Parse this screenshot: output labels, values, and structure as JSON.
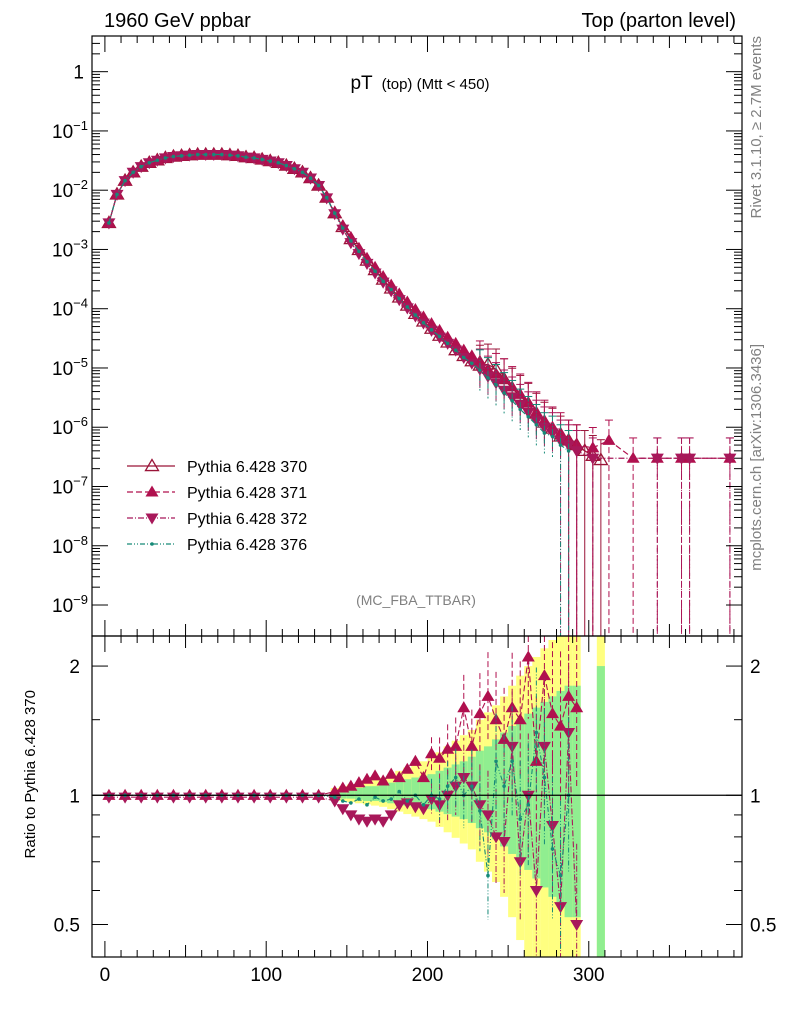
{
  "header": {
    "left": "1960 GeV ppbar",
    "right": "Top (parton level)"
  },
  "side": {
    "rivet": "Rivet 3.1.10, ≥ 2.7M events",
    "mcplots": "mcplots.cern.ch [arXiv:1306.3436]"
  },
  "colors": {
    "c370": "#9a1438",
    "c371": "#b0104e",
    "c372": "#a8185a",
    "c376": "#178a78",
    "band_inner": "#90ee90",
    "band_outer": "#ffff80"
  },
  "chart_data": [
    {
      "type": "line",
      "title_main": "pT",
      "title_sub": "(top) (Mtt < 450)",
      "analysis": "(MC_FBA_TTBAR)",
      "xlabel": "",
      "ylabel": "",
      "log_y": true,
      "xlim": [
        -8,
        395
      ],
      "ylim": [
        3e-10,
        4
      ],
      "ytick_labels": [
        "1",
        "10",
        "10",
        "10",
        "10",
        "10",
        "10",
        "10",
        "10",
        "10"
      ],
      "ytick_exponents": [
        "",
        "−1",
        "−2",
        "−3",
        "−4",
        "−5",
        "−6",
        "−7",
        "−8",
        "−9"
      ],
      "legend_position": "lower-left",
      "series": [
        {
          "name": "Pythia 6.428 370",
          "marker": "open-triangle-up",
          "line": "solid",
          "x": [
            2.5,
            7.5,
            12.5,
            17.5,
            22.5,
            27.5,
            32.5,
            37.5,
            42.5,
            47.5,
            52.5,
            57.5,
            62.5,
            67.5,
            72.5,
            77.5,
            82.5,
            87.5,
            92.5,
            97.5,
            102.5,
            107.5,
            112.5,
            117.5,
            122.5,
            127.5,
            132.5,
            137.5,
            142.5,
            147.5,
            152.5,
            157.5,
            162.5,
            167.5,
            172.5,
            177.5,
            182.5,
            187.5,
            192.5,
            197.5,
            202.5,
            207.5,
            212.5,
            217.5,
            222.5,
            227.5,
            232.5,
            237.5,
            242.5,
            247.5,
            252.5,
            257.5,
            262.5,
            267.5,
            272.5,
            277.5,
            282.5,
            287.5,
            292.5,
            297.5,
            302.5,
            307.5
          ],
          "values": [
            0.0028,
            0.0085,
            0.0145,
            0.02,
            0.025,
            0.029,
            0.032,
            0.035,
            0.037,
            0.038,
            0.039,
            0.04,
            0.04,
            0.04,
            0.04,
            0.039,
            0.038,
            0.036,
            0.035,
            0.033,
            0.031,
            0.029,
            0.026,
            0.023,
            0.02,
            0.016,
            0.012,
            0.0075,
            0.0041,
            0.0024,
            0.0015,
            0.00098,
            0.00065,
            0.00045,
            0.00031,
            0.00022,
            0.000155,
            0.000113,
            8.2e-05,
            6.1e-05,
            4.6e-05,
            3.5e-05,
            2.7e-05,
            2e-05,
            1.6e-05,
            1.3e-05,
            1.1e-05,
            1.15e-05,
            9.5e-06,
            6.5e-06,
            4.5e-06,
            3.4e-06,
            2.5e-06,
            1.7e-06,
            1.2e-06,
            9.5e-07,
            7e-07,
            6e-07,
            5e-07,
            4e-07,
            3.3e-07,
            2.8e-07
          ]
        },
        {
          "name": "Pythia 6.428 371",
          "marker": "filled-triangle-up",
          "line": "dashed",
          "x": [
            2.5,
            7.5,
            12.5,
            17.5,
            22.5,
            27.5,
            32.5,
            37.5,
            42.5,
            47.5,
            52.5,
            57.5,
            62.5,
            67.5,
            72.5,
            77.5,
            82.5,
            87.5,
            92.5,
            97.5,
            102.5,
            107.5,
            112.5,
            117.5,
            122.5,
            127.5,
            132.5,
            137.5,
            142.5,
            147.5,
            152.5,
            157.5,
            162.5,
            167.5,
            172.5,
            177.5,
            182.5,
            187.5,
            192.5,
            197.5,
            202.5,
            207.5,
            212.5,
            217.5,
            222.5,
            227.5,
            232.5,
            237.5,
            242.5,
            247.5,
            252.5,
            257.5,
            262.5,
            267.5,
            272.5,
            277.5,
            282.5,
            287.5,
            292.5,
            302.5,
            312.5,
            327.5,
            342.5,
            357.5,
            362.5,
            387.5
          ],
          "values": [
            0.0028,
            0.0085,
            0.0145,
            0.02,
            0.025,
            0.029,
            0.032,
            0.035,
            0.037,
            0.038,
            0.039,
            0.04,
            0.04,
            0.04,
            0.04,
            0.039,
            0.038,
            0.036,
            0.035,
            0.033,
            0.031,
            0.029,
            0.026,
            0.023,
            0.02,
            0.016,
            0.012,
            0.0076,
            0.0042,
            0.0025,
            0.0016,
            0.00105,
            0.00071,
            0.0005,
            0.00035,
            0.00025,
            0.000178,
            0.00013,
            9.7e-05,
            7.3e-05,
            5.6e-05,
            4.3e-05,
            3.3e-05,
            2.6e-05,
            2e-05,
            1.6e-05,
            1.3e-05,
            9.5e-06,
            8e-06,
            6.5e-06,
            4.8e-06,
            3.6e-06,
            2.6e-06,
            1.8e-06,
            1.3e-06,
            1e-06,
            8e-07,
            6e-07,
            5e-07,
            4.5e-07,
            6e-07,
            3e-07,
            3e-07,
            3e-07,
            3e-07,
            3e-07
          ]
        },
        {
          "name": "Pythia 6.428 372",
          "marker": "filled-triangle-down",
          "line": "dashdot",
          "x": [
            2.5,
            7.5,
            12.5,
            17.5,
            22.5,
            27.5,
            32.5,
            37.5,
            42.5,
            47.5,
            52.5,
            57.5,
            62.5,
            67.5,
            72.5,
            77.5,
            82.5,
            87.5,
            92.5,
            97.5,
            102.5,
            107.5,
            112.5,
            117.5,
            122.5,
            127.5,
            132.5,
            137.5,
            142.5,
            147.5,
            152.5,
            157.5,
            162.5,
            167.5,
            172.5,
            177.5,
            182.5,
            187.5,
            192.5,
            197.5,
            202.5,
            207.5,
            212.5,
            217.5,
            222.5,
            227.5,
            232.5,
            237.5,
            242.5,
            247.5,
            252.5,
            257.5,
            262.5,
            267.5,
            272.5,
            277.5,
            282.5,
            287.5,
            292.5,
            302.5,
            342.5,
            357.5,
            362.5,
            387.5
          ],
          "values": [
            0.0028,
            0.0085,
            0.0145,
            0.02,
            0.025,
            0.029,
            0.032,
            0.035,
            0.037,
            0.038,
            0.039,
            0.04,
            0.04,
            0.04,
            0.04,
            0.039,
            0.038,
            0.036,
            0.035,
            0.033,
            0.031,
            0.029,
            0.026,
            0.023,
            0.02,
            0.016,
            0.012,
            0.0074,
            0.004,
            0.0022,
            0.0013,
            0.00085,
            0.00058,
            0.0004,
            0.00028,
            0.0002,
            0.000142,
            0.000103,
            7.5e-05,
            5.7e-05,
            4.3e-05,
            3.3e-05,
            2.6e-05,
            2e-05,
            1.5e-05,
            1.2e-05,
            9.5e-06,
            7.2e-06,
            5.6e-06,
            4.2e-06,
            3.2e-06,
            2.4e-06,
            1.8e-06,
            1.3e-06,
            1e-06,
            8e-07,
            6e-07,
            5e-07,
            4e-07,
            3e-07,
            3e-07,
            3e-07,
            3e-07,
            3e-07
          ]
        },
        {
          "name": "Pythia 6.428 376",
          "marker": "small-dot",
          "line": "dashdotdot",
          "x": [
            2.5,
            7.5,
            12.5,
            17.5,
            22.5,
            27.5,
            32.5,
            37.5,
            42.5,
            47.5,
            52.5,
            57.5,
            62.5,
            67.5,
            72.5,
            77.5,
            82.5,
            87.5,
            92.5,
            97.5,
            102.5,
            107.5,
            112.5,
            117.5,
            122.5,
            127.5,
            132.5,
            137.5,
            142.5,
            147.5,
            152.5,
            157.5,
            162.5,
            167.5,
            172.5,
            177.5,
            182.5,
            187.5,
            192.5,
            197.5,
            202.5,
            207.5,
            212.5,
            217.5,
            222.5,
            227.5,
            232.5,
            237.5,
            242.5,
            247.5,
            252.5,
            257.5,
            262.5,
            267.5,
            272.5,
            277.5,
            282.5,
            287.5
          ],
          "values": [
            0.0028,
            0.0085,
            0.0145,
            0.02,
            0.025,
            0.029,
            0.032,
            0.035,
            0.037,
            0.038,
            0.039,
            0.04,
            0.04,
            0.04,
            0.04,
            0.039,
            0.038,
            0.036,
            0.035,
            0.033,
            0.031,
            0.029,
            0.026,
            0.023,
            0.02,
            0.016,
            0.012,
            0.0075,
            0.0041,
            0.0023,
            0.0014,
            0.00093,
            0.00062,
            0.00043,
            0.00029,
            0.00021,
            0.000148,
            0.000107,
            7.8e-05,
            5.8e-05,
            4.4e-05,
            3.4e-05,
            2.6e-05,
            2e-05,
            1.5e-05,
            1.2e-05,
            9.2e-06,
            6.8e-06,
            5.2e-06,
            3.8e-06,
            2.8e-06,
            2e-06,
            1.5e-06,
            1.1e-06,
            8e-07,
            7e-07,
            5e-07,
            4e-07
          ]
        }
      ]
    },
    {
      "type": "line",
      "ylabel": "Ratio to Pythia 6.428 370",
      "xlabel": "",
      "log_y": true,
      "xlim": [
        -8,
        395
      ],
      "ylim": [
        0.42,
        2.35
      ],
      "yticks": [
        0.5,
        1,
        2
      ],
      "ytick_labels": [
        "0.5",
        "1",
        "2"
      ],
      "xticks": [
        0,
        100,
        200,
        300
      ],
      "xtick_labels": [
        "0",
        "100",
        "200",
        "300"
      ],
      "reference_line": 1,
      "bands": {
        "x": [
          142.5,
          147.5,
          152.5,
          157.5,
          162.5,
          167.5,
          172.5,
          177.5,
          182.5,
          187.5,
          192.5,
          197.5,
          202.5,
          207.5,
          212.5,
          217.5,
          222.5,
          227.5,
          232.5,
          237.5,
          242.5,
          247.5,
          252.5,
          257.5,
          262.5,
          267.5,
          272.5,
          277.5,
          282.5,
          287.5,
          292.5,
          307.5
        ],
        "inner": [
          0.02,
          0.03,
          0.03,
          0.04,
          0.05,
          0.05,
          0.06,
          0.07,
          0.08,
          0.09,
          0.1,
          0.11,
          0.12,
          0.14,
          0.16,
          0.18,
          0.2,
          0.23,
          0.27,
          0.3,
          0.35,
          0.4,
          0.45,
          0.5,
          0.55,
          0.6,
          0.65,
          0.7,
          0.75,
          0.8,
          0.8,
          1.0
        ],
        "outer": [
          0.04,
          0.05,
          0.06,
          0.07,
          0.08,
          0.09,
          0.1,
          0.12,
          0.14,
          0.16,
          0.18,
          0.2,
          0.22,
          0.26,
          0.3,
          0.34,
          0.38,
          0.42,
          0.5,
          0.56,
          0.62,
          0.7,
          0.8,
          0.9,
          1.0,
          1.1,
          1.2,
          1.3,
          1.4,
          1.5,
          1.5,
          1.6
        ]
      },
      "series": [
        {
          "name": "Pythia 6.428 371",
          "x": [
            2.5,
            12.5,
            22.5,
            32.5,
            42.5,
            52.5,
            62.5,
            72.5,
            82.5,
            92.5,
            102.5,
            112.5,
            122.5,
            132.5,
            142.5,
            147.5,
            152.5,
            157.5,
            162.5,
            167.5,
            172.5,
            177.5,
            182.5,
            187.5,
            192.5,
            197.5,
            202.5,
            207.5,
            212.5,
            217.5,
            222.5,
            227.5,
            232.5,
            237.5,
            242.5,
            247.5,
            252.5,
            257.5,
            262.5,
            267.5,
            272.5,
            277.5,
            282.5,
            287.5,
            292.5
          ],
          "values": [
            1.0,
            1.0,
            1.0,
            1.0,
            1.0,
            1.0,
            1.0,
            1.0,
            1.0,
            1.0,
            1.0,
            1.0,
            1.0,
            1.0,
            1.02,
            1.04,
            1.05,
            1.07,
            1.09,
            1.11,
            1.08,
            1.12,
            1.1,
            1.15,
            1.2,
            1.1,
            1.25,
            1.22,
            1.28,
            1.3,
            1.6,
            1.3,
            1.55,
            1.7,
            1.5,
            1.35,
            1.6,
            1.5,
            2.1,
            1.2,
            1.9,
            1.55,
            1.45,
            1.7,
            1.6
          ]
        },
        {
          "name": "Pythia 6.428 372",
          "x": [
            2.5,
            12.5,
            22.5,
            32.5,
            42.5,
            52.5,
            62.5,
            72.5,
            82.5,
            92.5,
            102.5,
            112.5,
            122.5,
            132.5,
            142.5,
            147.5,
            152.5,
            157.5,
            162.5,
            167.5,
            172.5,
            177.5,
            182.5,
            187.5,
            192.5,
            197.5,
            202.5,
            207.5,
            212.5,
            217.5,
            222.5,
            227.5,
            232.5,
            237.5,
            242.5,
            247.5,
            252.5,
            257.5,
            262.5,
            267.5,
            272.5,
            277.5,
            282.5,
            287.5,
            292.5
          ],
          "values": [
            0.99,
            0.99,
            0.99,
            0.99,
            0.99,
            0.99,
            0.99,
            0.99,
            0.99,
            0.99,
            0.99,
            0.99,
            0.99,
            0.99,
            0.97,
            0.93,
            0.9,
            0.88,
            0.87,
            0.88,
            0.87,
            0.9,
            0.95,
            0.96,
            0.94,
            0.93,
            0.98,
            0.95,
            1.0,
            1.05,
            1.1,
            1.05,
            0.95,
            0.9,
            0.8,
            0.78,
            1.3,
            0.7,
            1.0,
            0.6,
            1.3,
            0.85,
            0.55,
            1.4,
            0.5
          ]
        },
        {
          "name": "Pythia 6.428 376",
          "x": [
            2.5,
            12.5,
            22.5,
            32.5,
            42.5,
            52.5,
            62.5,
            72.5,
            82.5,
            92.5,
            102.5,
            112.5,
            122.5,
            132.5,
            142.5,
            147.5,
            152.5,
            157.5,
            162.5,
            167.5,
            172.5,
            177.5,
            182.5,
            187.5,
            192.5,
            197.5,
            202.5,
            207.5,
            212.5,
            217.5,
            222.5,
            227.5,
            232.5,
            237.5,
            242.5,
            247.5,
            252.5,
            257.5,
            262.5,
            267.5,
            272.5,
            277.5,
            282.5,
            287.5
          ],
          "values": [
            1.0,
            1.0,
            1.0,
            1.0,
            1.0,
            1.0,
            1.0,
            1.0,
            1.0,
            1.0,
            1.0,
            1.0,
            1.0,
            1.0,
            0.99,
            0.97,
            0.96,
            0.98,
            0.95,
            0.99,
            0.97,
            0.98,
            1.02,
            0.97,
            1.0,
            0.95,
            1.0,
            0.98,
            1.05,
            1.1,
            1.0,
            1.05,
            0.92,
            0.65,
            1.2,
            1.05,
            1.2,
            0.88,
            0.95,
            1.4,
            1.1,
            0.75,
            0.65,
            1.0
          ]
        }
      ]
    }
  ]
}
